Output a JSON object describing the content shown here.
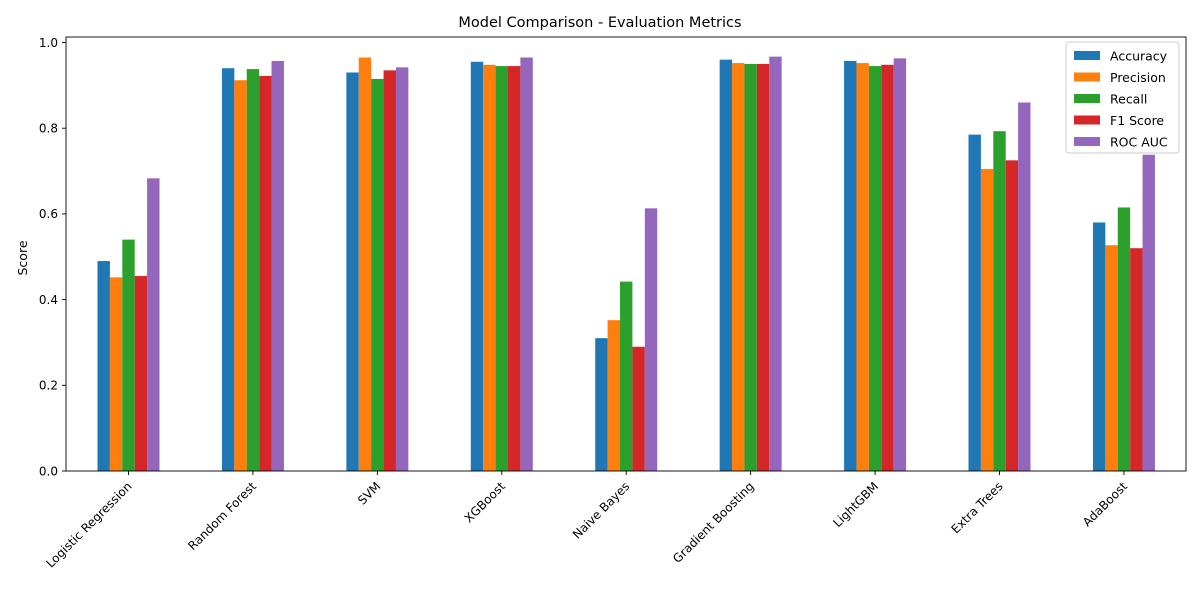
{
  "chart_data": {
    "type": "bar",
    "title": "Model Comparison - Evaluation Metrics",
    "xlabel": "",
    "ylabel": "Score",
    "ylim": [
      0,
      1.0
    ],
    "yticks": [
      0.0,
      0.2,
      0.4,
      0.6,
      0.8,
      1.0
    ],
    "ytick_labels": [
      "0.0",
      "0.2",
      "0.4",
      "0.6",
      "0.8",
      "1.0"
    ],
    "grid": false,
    "legend_position": "top-right",
    "categories": [
      "Logistic Regression",
      "Random Forest",
      "SVM",
      "XGBoost",
      "Naive Bayes",
      "Gradient Boosting",
      "LightGBM",
      "Extra Trees",
      "AdaBoost"
    ],
    "series": [
      {
        "name": "Accuracy",
        "color": "#1f77b4",
        "values": [
          0.49,
          0.94,
          0.93,
          0.955,
          0.31,
          0.96,
          0.957,
          0.785,
          0.58
        ]
      },
      {
        "name": "Precision",
        "color": "#ff7f0e",
        "values": [
          0.452,
          0.912,
          0.965,
          0.948,
          0.352,
          0.952,
          0.952,
          0.705,
          0.527
        ]
      },
      {
        "name": "Recall",
        "color": "#2ca02c",
        "values": [
          0.54,
          0.938,
          0.915,
          0.945,
          0.442,
          0.95,
          0.945,
          0.793,
          0.615
        ]
      },
      {
        "name": "F1 Score",
        "color": "#d62728",
        "values": [
          0.455,
          0.922,
          0.935,
          0.945,
          0.29,
          0.95,
          0.948,
          0.725,
          0.52
        ]
      },
      {
        "name": "ROC AUC",
        "color": "#9467bd",
        "values": [
          0.683,
          0.957,
          0.942,
          0.965,
          0.613,
          0.967,
          0.963,
          0.86,
          0.738
        ]
      }
    ]
  }
}
